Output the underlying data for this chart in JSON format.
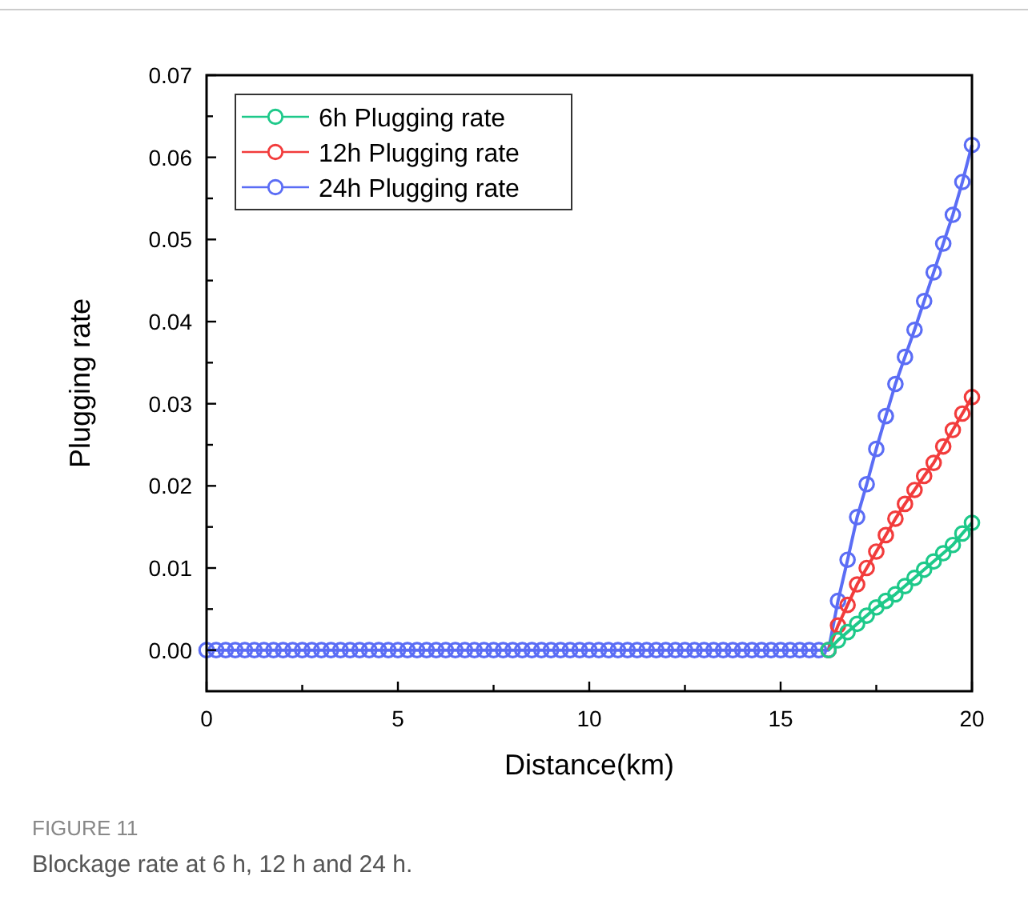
{
  "chart_data": {
    "type": "line",
    "xlabel": "Distance(km)",
    "ylabel": "Plugging rate",
    "x": [
      0,
      0.25,
      0.5,
      0.75,
      1,
      1.25,
      1.5,
      1.75,
      2,
      2.25,
      2.5,
      2.75,
      3,
      3.25,
      3.5,
      3.75,
      4,
      4.25,
      4.5,
      4.75,
      5,
      5.25,
      5.5,
      5.75,
      6,
      6.25,
      6.5,
      6.75,
      7,
      7.25,
      7.5,
      7.75,
      8,
      8.25,
      8.5,
      8.75,
      9,
      9.25,
      9.5,
      9.75,
      10,
      10.25,
      10.5,
      10.75,
      11,
      11.25,
      11.5,
      11.75,
      12,
      12.25,
      12.5,
      12.75,
      13,
      13.25,
      13.5,
      13.75,
      14,
      14.25,
      14.5,
      14.75,
      15,
      15.25,
      15.5,
      15.75,
      16,
      16.25,
      16.5,
      16.75,
      17,
      17.25,
      17.5,
      17.75,
      18,
      18.25,
      18.5,
      18.75,
      19,
      19.25,
      19.5,
      19.75,
      20
    ],
    "series": [
      {
        "name": "6h Plugging rate",
        "color": "#1ec98a",
        "values": [
          null,
          null,
          null,
          null,
          null,
          null,
          null,
          null,
          null,
          null,
          null,
          null,
          null,
          null,
          null,
          null,
          null,
          null,
          null,
          null,
          null,
          null,
          null,
          null,
          null,
          null,
          null,
          null,
          null,
          null,
          null,
          null,
          null,
          null,
          null,
          null,
          null,
          null,
          null,
          null,
          null,
          null,
          null,
          null,
          null,
          null,
          null,
          null,
          null,
          null,
          null,
          null,
          null,
          null,
          null,
          null,
          null,
          null,
          null,
          null,
          null,
          null,
          null,
          null,
          null,
          0,
          0.0012,
          0.0022,
          0.0032,
          0.0042,
          0.0052,
          0.006,
          0.0068,
          0.0078,
          0.0088,
          0.0098,
          0.0108,
          0.0118,
          0.0128,
          0.0142,
          0.0155
        ]
      },
      {
        "name": "12h Plugging rate",
        "color": "#f23c3c",
        "values": [
          null,
          null,
          null,
          null,
          null,
          null,
          null,
          null,
          null,
          null,
          null,
          null,
          null,
          null,
          null,
          null,
          null,
          null,
          null,
          null,
          null,
          null,
          null,
          null,
          null,
          null,
          null,
          null,
          null,
          null,
          null,
          null,
          null,
          null,
          null,
          null,
          null,
          null,
          null,
          null,
          null,
          null,
          null,
          null,
          null,
          null,
          null,
          null,
          null,
          null,
          null,
          null,
          null,
          null,
          null,
          null,
          null,
          null,
          null,
          null,
          null,
          null,
          null,
          null,
          null,
          0,
          0.003,
          0.0055,
          0.008,
          0.01,
          0.012,
          0.014,
          0.016,
          0.0178,
          0.0195,
          0.0212,
          0.0228,
          0.0248,
          0.0268,
          0.0288,
          0.0308
        ]
      },
      {
        "name": "24h Plugging rate",
        "color": "#5b6df5",
        "values": [
          0,
          0,
          0,
          0,
          0,
          0,
          0,
          0,
          0,
          0,
          0,
          0,
          0,
          0,
          0,
          0,
          0,
          0,
          0,
          0,
          0,
          0,
          0,
          0,
          0,
          0,
          0,
          0,
          0,
          0,
          0,
          0,
          0,
          0,
          0,
          0,
          0,
          0,
          0,
          0,
          0,
          0,
          0,
          0,
          0,
          0,
          0,
          0,
          0,
          0,
          0,
          0,
          0,
          0,
          0,
          0,
          0,
          0,
          0,
          0,
          0,
          0,
          0,
          0,
          0,
          0,
          0.006,
          0.011,
          0.0162,
          0.0202,
          0.0245,
          0.0285,
          0.0324,
          0.0357,
          0.039,
          0.0425,
          0.046,
          0.0495,
          0.053,
          0.057,
          0.0615
        ]
      }
    ],
    "xlim": [
      0,
      20
    ],
    "xticks": [
      0,
      {
        "value": 2.5,
        "label": null
      },
      5,
      {
        "value": 7.5,
        "label": null
      },
      10,
      {
        "value": 12.5,
        "label": null
      },
      15,
      {
        "value": 17.5,
        "label": null
      },
      20
    ],
    "ylim": [
      -0.005,
      0.07
    ],
    "yticks": [
      {
        "value": 0,
        "label": "0.00"
      },
      {
        "value": 0.005,
        "label": null
      },
      0.01,
      {
        "value": 0.015,
        "label": null
      },
      0.02,
      {
        "value": 0.025,
        "label": null
      },
      0.03,
      {
        "value": 0.035,
        "label": null
      },
      0.04,
      {
        "value": 0.045,
        "label": null
      },
      0.05,
      {
        "value": 0.055,
        "label": null
      },
      0.06,
      {
        "value": 0.065,
        "label": null
      },
      0.07
    ],
    "marker": "circle",
    "legend": "top left",
    "grid": false,
    "annotations": [
      "FIGURE 11",
      "Blockage rate at 6 h, 12 h and 24 h."
    ]
  }
}
